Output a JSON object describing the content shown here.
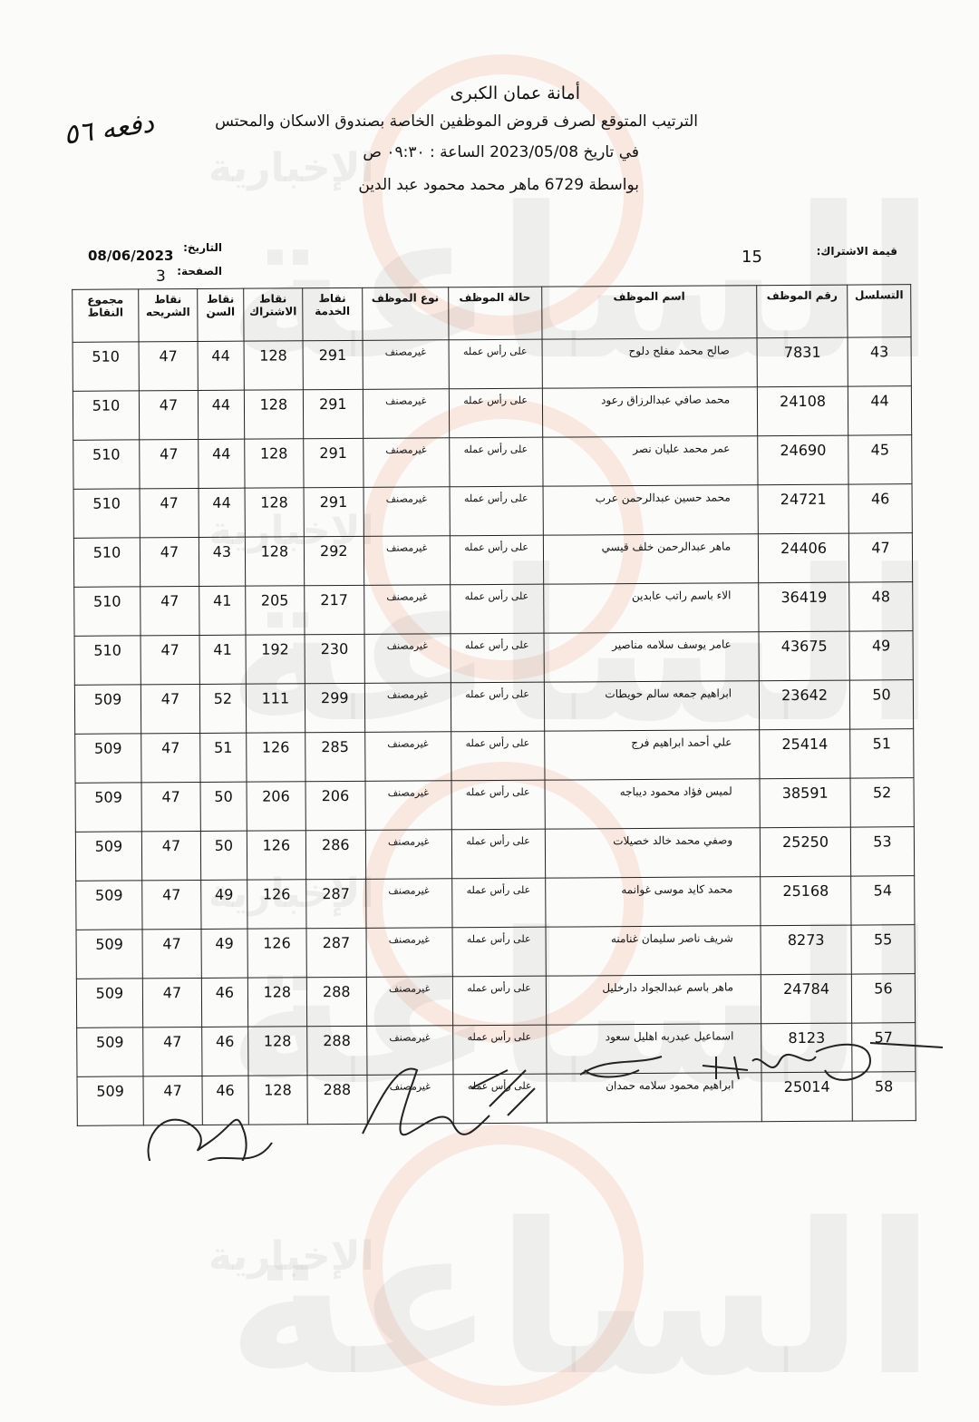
{
  "header": {
    "organization": "أمانة عمان الكبرى",
    "subtitle": "الترتيب المتوقع لصرف قروض الموظفين الخاصة بصندوق الاسكان والمحتس",
    "date_line": "في تاريخ 2023/05/08   الساعة :  ٠٩:٣٠ ص",
    "by_line": "بواسطة   6729 ماهر محمد محمود عبد الدين",
    "handwritten_note": "دفعه ٥٦"
  },
  "meta": {
    "subscription_label": "قيمة الاشتراك:",
    "subscription_value": "15",
    "date_label": "التاريخ:",
    "date_value": "08/06/2023",
    "page_label": "الصفحة:",
    "page_value": "3"
  },
  "table": {
    "columns": [
      "التسلسل",
      "رقم الموظف",
      "اسم الموظف",
      "حالة الموظف",
      "نوع الموظف",
      "نقاط الخدمة",
      "نقاط الاشتراك",
      "نقاط السن",
      "نقاط الشريحه",
      "مجموع النقاط"
    ],
    "rows": [
      [
        "43",
        "7831",
        "صالح محمد مفلح دلوح",
        "على رأس عمله",
        "غيرمصنف",
        "291",
        "128",
        "44",
        "47",
        "510"
      ],
      [
        "44",
        "24108",
        "محمد صافي عبدالرزاق رعود",
        "على رأس عمله",
        "غيرمصنف",
        "291",
        "128",
        "44",
        "47",
        "510"
      ],
      [
        "45",
        "24690",
        "عمر محمد عليان نصر",
        "على رأس عمله",
        "غيرمصنف",
        "291",
        "128",
        "44",
        "47",
        "510"
      ],
      [
        "46",
        "24721",
        "محمد حسين عبدالرحمن عرب",
        "على رأس عمله",
        "غيرمصنف",
        "291",
        "128",
        "44",
        "47",
        "510"
      ],
      [
        "47",
        "24406",
        "ماهر عبدالرحمن خلف قيسي",
        "على رأس عمله",
        "غيرمصنف",
        "292",
        "128",
        "43",
        "47",
        "510"
      ],
      [
        "48",
        "36419",
        "الاء باسم راتب عابدين",
        "على رأس عمله",
        "غيرمصنف",
        "217",
        "205",
        "41",
        "47",
        "510"
      ],
      [
        "49",
        "43675",
        "عامر يوسف سلامه مناصير",
        "على رأس عمله",
        "غيرمصنف",
        "230",
        "192",
        "41",
        "47",
        "510"
      ],
      [
        "50",
        "23642",
        "ابراهيم جمعه سالم حويطات",
        "على رأس عمله",
        "غيرمصنف",
        "299",
        "111",
        "52",
        "47",
        "509"
      ],
      [
        "51",
        "25414",
        "علي أحمد ابراهيم فرج",
        "على رأس عمله",
        "غيرمصنف",
        "285",
        "126",
        "51",
        "47",
        "509"
      ],
      [
        "52",
        "38591",
        "لميس فؤاد محمود ديباجه",
        "على رأس عمله",
        "غيرمصنف",
        "206",
        "206",
        "50",
        "47",
        "509"
      ],
      [
        "53",
        "25250",
        "وصفي محمد خالد خصيلات",
        "على رأس عمله",
        "غيرمصنف",
        "286",
        "126",
        "50",
        "47",
        "509"
      ],
      [
        "54",
        "25168",
        "محمد كايد موسى غوانمه",
        "على رأس عمله",
        "غيرمصنف",
        "287",
        "126",
        "49",
        "47",
        "509"
      ],
      [
        "55",
        "8273",
        "شريف ناصر سليمان غنامنه",
        "على رأس عمله",
        "غيرمصنف",
        "287",
        "126",
        "49",
        "47",
        "509"
      ],
      [
        "56",
        "24784",
        "ماهر باسم عبدالجواد دارخليل",
        "على رأس عمله",
        "غيرمصنف",
        "288",
        "128",
        "46",
        "47",
        "509"
      ],
      [
        "57",
        "8123",
        "اسماعيل عبدربه اهليل سعود",
        "على رأس عمله",
        "غيرمصنف",
        "288",
        "128",
        "46",
        "47",
        "509"
      ],
      [
        "58",
        "25014",
        "ابراهيم محمود سلامه حمدان",
        "على رأس عمله",
        "غيرمصنف",
        "288",
        "128",
        "46",
        "47",
        "509"
      ]
    ]
  },
  "watermark": {
    "text": "مدار الساعة الإخبارية",
    "accent": "#f0966e"
  }
}
